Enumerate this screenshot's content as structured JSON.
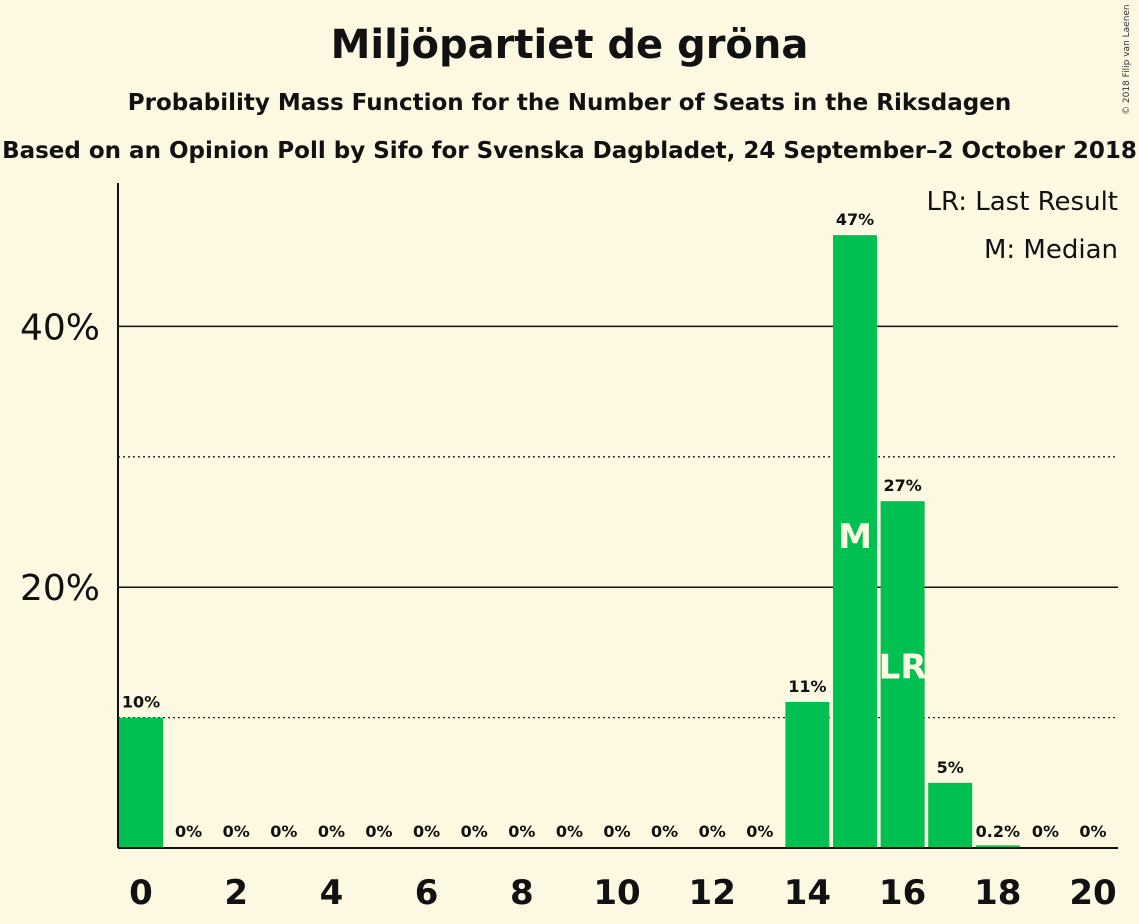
{
  "chart_data": {
    "type": "bar",
    "title": "Miljöpartiet de gröna",
    "subtitle": "Probability Mass Function for the Number of Seats in the Riksdagen",
    "source": "Based on an Opinion Poll by Sifo for Svenska Dagbladet, 24 September–2 October 2018",
    "copyright": "© 2018 Filip van Laenen",
    "x": [
      0,
      1,
      2,
      3,
      4,
      5,
      6,
      7,
      8,
      9,
      10,
      11,
      12,
      13,
      14,
      15,
      16,
      17,
      18,
      19,
      20
    ],
    "values": [
      10,
      0,
      0,
      0,
      0,
      0,
      0,
      0,
      0,
      0,
      0,
      0,
      0,
      0,
      11.2,
      47,
      26.6,
      5,
      0.2,
      0,
      0
    ],
    "data_labels": [
      "10%",
      "0%",
      "0%",
      "0%",
      "0%",
      "0%",
      "0%",
      "0%",
      "0%",
      "0%",
      "0%",
      "0%",
      "0%",
      "0%",
      "11%",
      "47%",
      "27%",
      "5%",
      "0.2%",
      "0%",
      "0%"
    ],
    "x_ticks": [
      "0",
      "2",
      "4",
      "6",
      "8",
      "10",
      "12",
      "14",
      "16",
      "18",
      "20"
    ],
    "y_ticks": [
      {
        "value": 20,
        "label": "20%"
      },
      {
        "value": 40,
        "label": "40%"
      }
    ],
    "minor_gridlines": [
      10,
      30
    ],
    "ylim": [
      0,
      51
    ],
    "bar_color": "#00c052",
    "annotations": [
      {
        "x": 15,
        "text": "M",
        "at_value": 23
      },
      {
        "x": 16,
        "text": "LR",
        "at_value": 13
      }
    ],
    "legend": {
      "placement": "top-right",
      "items": [
        "LR: Last Result",
        "M: Median"
      ]
    }
  }
}
